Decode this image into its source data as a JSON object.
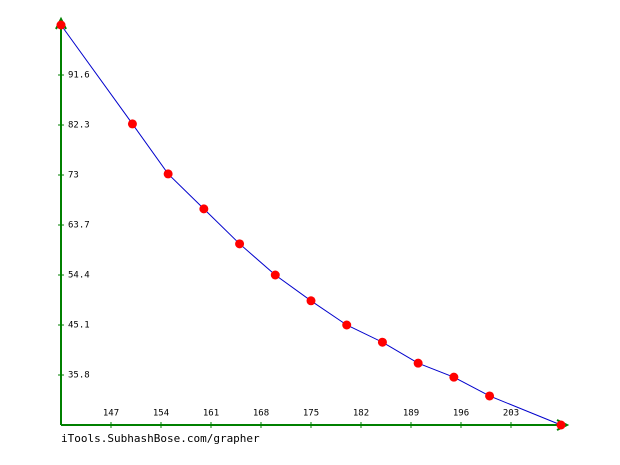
{
  "chart_data": {
    "type": "line",
    "x": [
      140,
      150,
      155,
      160,
      165,
      170,
      175,
      180,
      185,
      190,
      195,
      200,
      210
    ],
    "series": [
      {
        "color": "#0000cc",
        "marker_color": "#ff0000",
        "values": [
          100.9,
          82.5,
          73.2,
          66.7,
          60.2,
          54.4,
          49.6,
          45.1,
          41.9,
          38.0,
          35.4,
          31.9,
          26.5
        ]
      }
    ],
    "xlim": [
      140,
      210
    ],
    "ylim": [
      26.5,
      100.9
    ],
    "xticks": [
      147,
      154,
      161,
      168,
      175,
      182,
      189,
      196,
      203
    ],
    "yticks": [
      35.8,
      45.1,
      54.4,
      63.7,
      73,
      82.3,
      91.6
    ],
    "axis_color": "#008000",
    "source": "iTools.SubhashBose.com/grapher"
  }
}
